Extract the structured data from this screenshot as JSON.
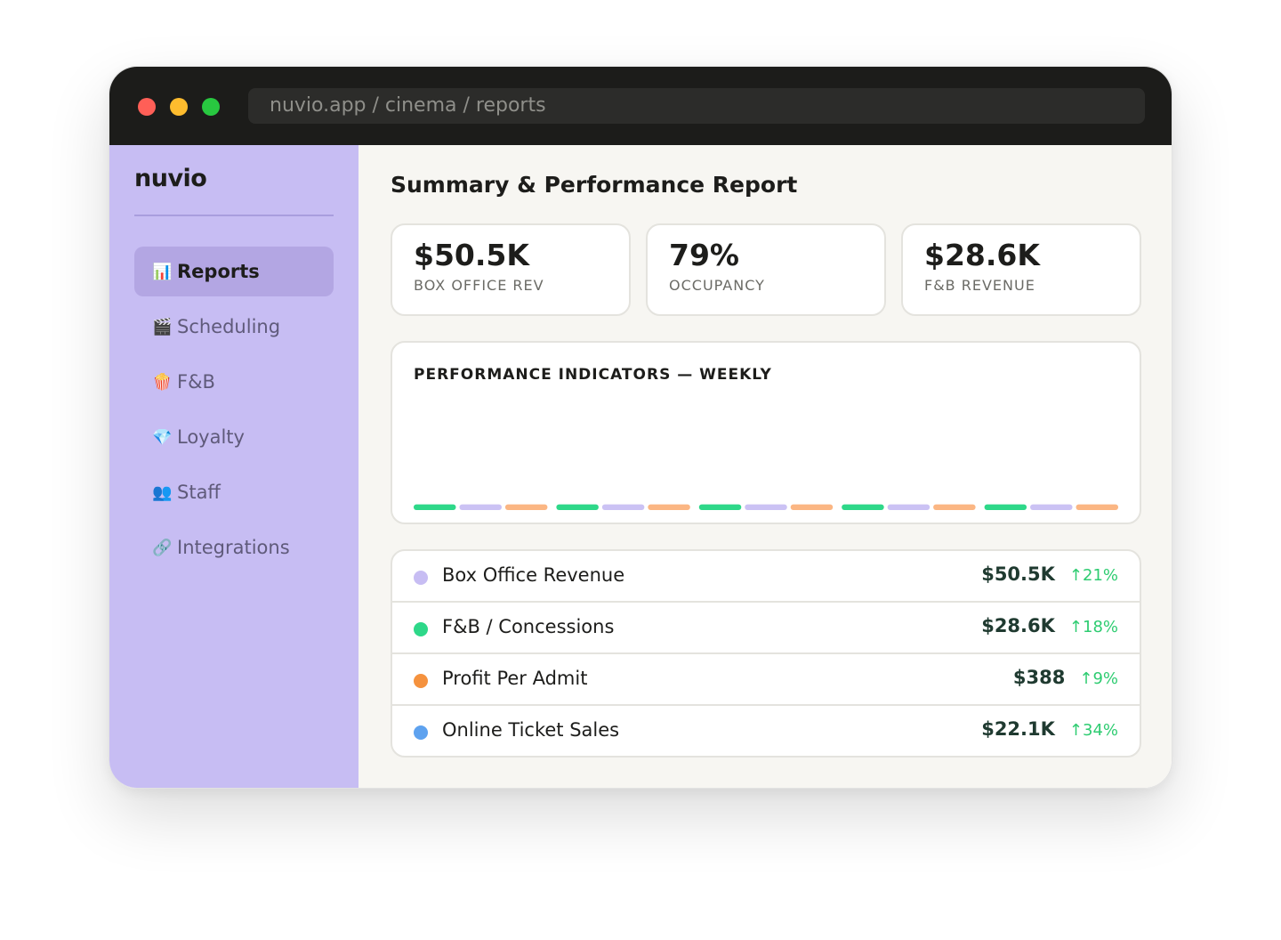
{
  "browser": {
    "url": "nuvio.app / cinema / reports"
  },
  "sidebar": {
    "logo": "nuvio",
    "items": [
      {
        "icon": "📊",
        "icon_name": "bar-chart-icon",
        "label": "Reports",
        "active": true
      },
      {
        "icon": "🎬",
        "icon_name": "clapperboard-icon",
        "label": "Scheduling",
        "active": false
      },
      {
        "icon": "🍿",
        "icon_name": "popcorn-icon",
        "label": "F&B",
        "active": false
      },
      {
        "icon": "💎",
        "icon_name": "gem-icon",
        "label": "Loyalty",
        "active": false
      },
      {
        "icon": "👥",
        "icon_name": "people-icon",
        "label": "Staff",
        "active": false
      },
      {
        "icon": "🔗",
        "icon_name": "link-icon",
        "label": "Integrations",
        "active": false
      }
    ]
  },
  "main": {
    "title": "Summary & Performance Report",
    "kpis": [
      {
        "value": "$50.5K",
        "label": "BOX OFFICE REV"
      },
      {
        "value": "79%",
        "label": "OCCUPANCY"
      },
      {
        "value": "$28.6K",
        "label": "F&B REVENUE"
      }
    ],
    "chart_title": "PERFORMANCE INDICATORS — WEEKLY",
    "metrics": [
      {
        "label": "Box Office Revenue",
        "value": "$50.5K",
        "change": "↑21%",
        "color": "#c7bdf3"
      },
      {
        "label": "F&B / Concessions",
        "value": "$28.6K",
        "change": "↑18%",
        "color": "#2ed889"
      },
      {
        "label": "Profit Per Admit",
        "value": "$388",
        "change": "↑9%",
        "color": "#f5923e"
      },
      {
        "label": "Online Ticket Sales",
        "value": "$22.1K",
        "change": "↑34%",
        "color": "#5ea2ef"
      }
    ]
  },
  "colors": {
    "sidebar_bg": "#c7bdf3",
    "active_item_bg": "#b3a6e3",
    "titlebar_bg": "#1c1c1a",
    "positive_change": "#2ecc71"
  },
  "chart_data": {
    "type": "bar",
    "categories": [
      "",
      "",
      "",
      "",
      ""
    ],
    "series": [
      {
        "values": [
          0.05,
          0.05,
          0.05,
          0.05,
          0.05
        ],
        "color": "#2ed889"
      },
      {
        "values": [
          0.05,
          0.05,
          0.05,
          0.05,
          0.05
        ],
        "color": "#cbc2f4"
      },
      {
        "values": [
          0.05,
          0.05,
          0.05,
          0.05,
          0.05
        ],
        "color": "#fbb683"
      }
    ],
    "ylim": [
      0,
      1
    ]
  }
}
